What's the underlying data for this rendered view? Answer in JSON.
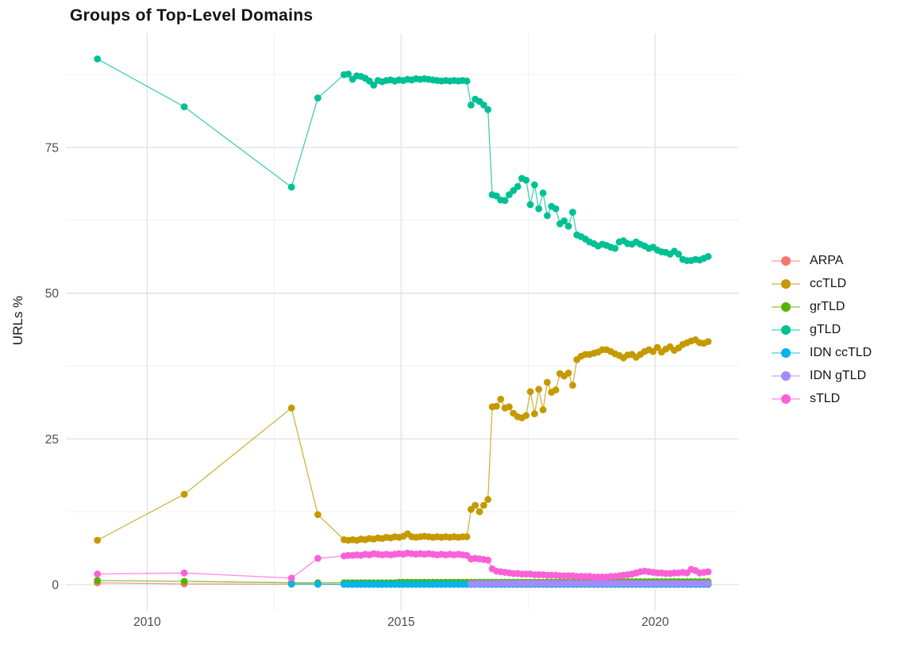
{
  "title": "Groups of Top-Level Domains",
  "chart_data": {
    "type": "line",
    "title": "Groups of Top-Level Domains",
    "xlabel": "",
    "ylabel": "URLs %",
    "xlim": [
      2008.4,
      2021.65
    ],
    "ylim": [
      -4.5,
      94.6
    ],
    "x_ticks": [
      2010,
      2015,
      2020
    ],
    "x_tick_labels": [
      "2010",
      "2015",
      "2020"
    ],
    "x_minor_ticks": [
      2012.5,
      2017.5
    ],
    "y_ticks": [
      0,
      25,
      50,
      75
    ],
    "y_tick_labels": [
      "0",
      "25",
      "50",
      "75"
    ],
    "y_minor_ticks": [
      12.5,
      37.5,
      62.5,
      87.5
    ],
    "grid": true,
    "legend_position": "right",
    "series": [
      {
        "name": "ARPA",
        "color": "#F8766D",
        "early": [
          [
            2009.02,
            0.3
          ],
          [
            2010.73,
            0.12
          ],
          [
            2012.84,
            0.06
          ],
          [
            2013.36,
            0.05
          ]
        ],
        "runs": [
          {
            "start": 2013.875,
            "months": 87,
            "value": 0.03
          }
        ]
      },
      {
        "name": "ccTLD",
        "color": "#C49A00",
        "early": [
          [
            2009.02,
            7.6
          ],
          [
            2010.73,
            15.5
          ],
          [
            2012.84,
            30.3
          ],
          [
            2013.36,
            12.0
          ]
        ],
        "dense_start": 2013.875,
        "dense_values": [
          7.7,
          7.6,
          7.7,
          7.6,
          7.8,
          7.7,
          7.9,
          7.8,
          8.0,
          7.9,
          8.1,
          8.0,
          8.2,
          8.1,
          8.3,
          8.7,
          8.2,
          8.1,
          8.2,
          8.3,
          8.2,
          8.1,
          8.2,
          8.1,
          8.2,
          8.1,
          8.2,
          8.1,
          8.2,
          8.2,
          12.9,
          13.6,
          12.5,
          13.6,
          14.6,
          30.5,
          30.6,
          31.8,
          30.3,
          30.5,
          29.4,
          28.8,
          28.6,
          29.0,
          33.1,
          29.3,
          33.5,
          30.0,
          34.7,
          33.0,
          33.4,
          36.2,
          35.8,
          36.3,
          34.2,
          38.6,
          39.2,
          39.5,
          39.5,
          39.7,
          39.9,
          40.3,
          40.3,
          40.0,
          39.6,
          39.3,
          38.9,
          39.4,
          39.5,
          39.0,
          39.5,
          40.0,
          40.3,
          40.0,
          40.7,
          39.9,
          40.4,
          40.8,
          40.2,
          40.6,
          41.2,
          41.5,
          41.8,
          42.0,
          41.5,
          41.4,
          41.7
        ]
      },
      {
        "name": "grTLD",
        "color": "#53B400",
        "early": [
          [
            2009.02,
            0.7
          ],
          [
            2010.73,
            0.55
          ],
          [
            2012.84,
            0.3
          ],
          [
            2013.36,
            0.3
          ]
        ],
        "runs": [
          {
            "start": 2013.875,
            "months": 13,
            "value": 0.3
          },
          {
            "start": 2014.958,
            "months": 42,
            "value": 0.4
          },
          {
            "start": 2018.458,
            "months": 32,
            "value": 0.5
          }
        ]
      },
      {
        "name": "gTLD",
        "color": "#00C094",
        "early": [
          [
            2009.02,
            90.2
          ],
          [
            2010.73,
            82.0
          ],
          [
            2012.84,
            68.2
          ],
          [
            2013.36,
            83.5
          ]
        ],
        "dense_start": 2013.875,
        "dense_values": [
          87.5,
          87.6,
          86.7,
          87.3,
          87.2,
          86.9,
          86.4,
          85.7,
          86.5,
          86.3,
          86.5,
          86.6,
          86.4,
          86.6,
          86.5,
          86.7,
          86.6,
          86.8,
          86.7,
          86.8,
          86.7,
          86.6,
          86.5,
          86.4,
          86.5,
          86.4,
          86.5,
          86.4,
          86.5,
          86.4,
          82.3,
          83.3,
          82.9,
          82.3,
          81.5,
          66.9,
          66.7,
          66.0,
          65.9,
          66.9,
          67.6,
          68.3,
          69.7,
          69.4,
          65.2,
          68.6,
          64.5,
          67.2,
          63.3,
          64.9,
          64.5,
          61.9,
          62.4,
          61.5,
          63.9,
          60.0,
          59.7,
          59.3,
          58.8,
          58.5,
          58.1,
          58.4,
          58.2,
          57.9,
          57.7,
          58.8,
          59.0,
          58.5,
          58.4,
          58.8,
          58.4,
          58.1,
          57.7,
          57.9,
          57.4,
          57.1,
          57.0,
          56.7,
          57.2,
          56.7,
          55.8,
          55.6,
          55.6,
          55.8,
          55.7,
          56.0,
          56.3
        ]
      },
      {
        "name": "IDN ccTLD",
        "color": "#00B6EB",
        "early": [
          [
            2012.84,
            0.1
          ],
          [
            2013.36,
            0.08
          ]
        ],
        "runs": [
          {
            "start": 2013.875,
            "months": 87,
            "value": 0.05
          }
        ]
      },
      {
        "name": "IDN gTLD",
        "color": "#A58AFF",
        "early": [],
        "runs": [
          {
            "start": 2016.375,
            "months": 5,
            "value": 0.15
          },
          {
            "start": 2016.792,
            "months": 52,
            "value": 0.2
          }
        ]
      },
      {
        "name": "sTLD",
        "color": "#FB61D7",
        "early": [
          [
            2009.02,
            1.8
          ],
          [
            2010.73,
            2.0
          ],
          [
            2012.84,
            1.1
          ],
          [
            2013.36,
            4.5
          ]
        ],
        "dense_start": 2013.875,
        "dense_values": [
          4.9,
          5.0,
          5.0,
          5.1,
          5.0,
          5.2,
          5.1,
          5.3,
          5.2,
          5.1,
          5.2,
          5.1,
          5.2,
          5.3,
          5.2,
          5.4,
          5.3,
          5.2,
          5.3,
          5.2,
          5.3,
          5.2,
          5.1,
          5.2,
          5.1,
          5.2,
          5.1,
          5.2,
          5.1,
          5.0,
          4.4,
          4.5,
          4.4,
          4.3,
          4.2,
          2.7,
          2.3,
          2.2,
          2.1,
          2.0,
          1.9,
          1.9,
          1.8,
          1.8,
          1.8,
          1.7,
          1.7,
          1.7,
          1.6,
          1.6,
          1.6,
          1.5,
          1.5,
          1.5,
          1.5,
          1.4,
          1.4,
          1.4,
          1.4,
          1.3,
          1.3,
          1.3,
          1.3,
          1.4,
          1.4,
          1.5,
          1.6,
          1.7,
          1.8,
          2.0,
          2.2,
          2.3,
          2.2,
          2.1,
          2.0,
          2.0,
          1.9,
          1.9,
          2.0,
          2.0,
          2.1,
          2.0,
          2.6,
          2.4,
          2.0,
          2.1,
          2.2
        ]
      }
    ],
    "style": {
      "major_grid_color": "#e3e3e3",
      "minor_grid_color": "#f1f1f1",
      "tick_label_color": "#4d4d4d",
      "point_radius": 4.4,
      "line_width": 1.3
    }
  }
}
